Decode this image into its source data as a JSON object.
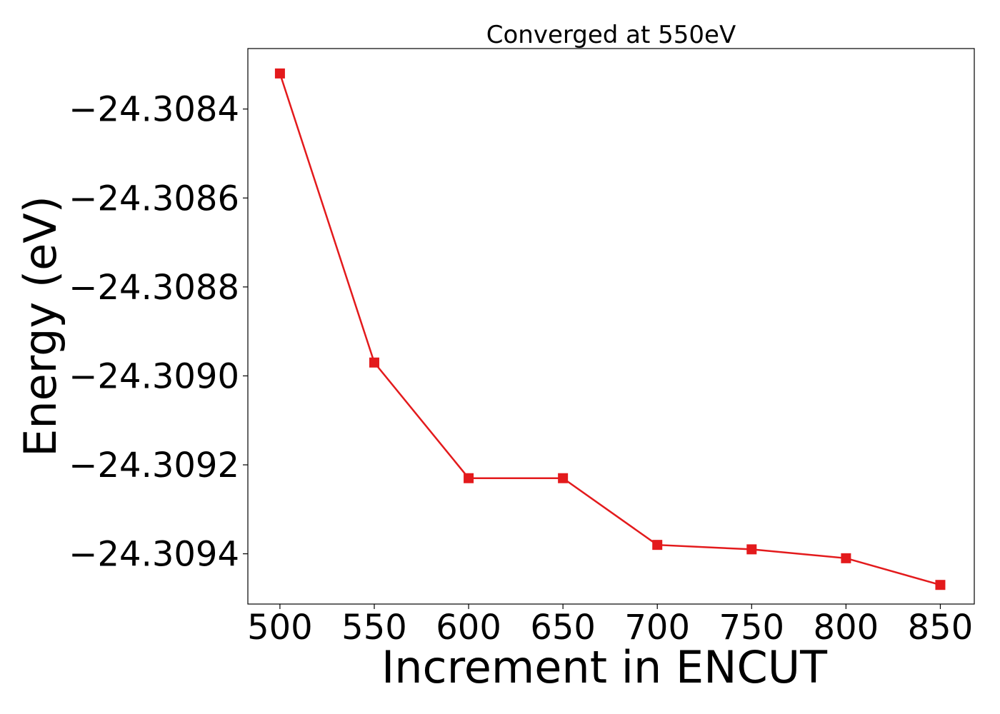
{
  "chart_data": {
    "type": "line",
    "title": "Converged at 550eV",
    "xlabel": "Increment in ENCUT",
    "ylabel": "Energy (eV)",
    "x": [
      500,
      550,
      600,
      650,
      700,
      750,
      800,
      850
    ],
    "series": [
      {
        "values": [
          -24.30832,
          -24.30897,
          -24.30923,
          -24.30923,
          -24.30938,
          -24.30939,
          -24.30941,
          -24.30947
        ],
        "color": "#e31a1c",
        "marker": "square"
      }
    ],
    "xlim": [
      483,
      868
    ],
    "ylim": [
      -24.309513,
      -24.308264
    ],
    "xticks": [
      500,
      550,
      600,
      650,
      700,
      750,
      800,
      850
    ],
    "xtick_labels": [
      "500",
      "550",
      "600",
      "650",
      "700",
      "750",
      "800",
      "850"
    ],
    "yticks": [
      -24.3084,
      -24.3086,
      -24.3088,
      -24.309,
      -24.3092,
      -24.3094
    ],
    "ytick_labels": [
      "−24.3084",
      "−24.3086",
      "−24.3088",
      "−24.3090",
      "−24.3092",
      "−24.3094"
    ],
    "grid": false,
    "legend": "none"
  }
}
